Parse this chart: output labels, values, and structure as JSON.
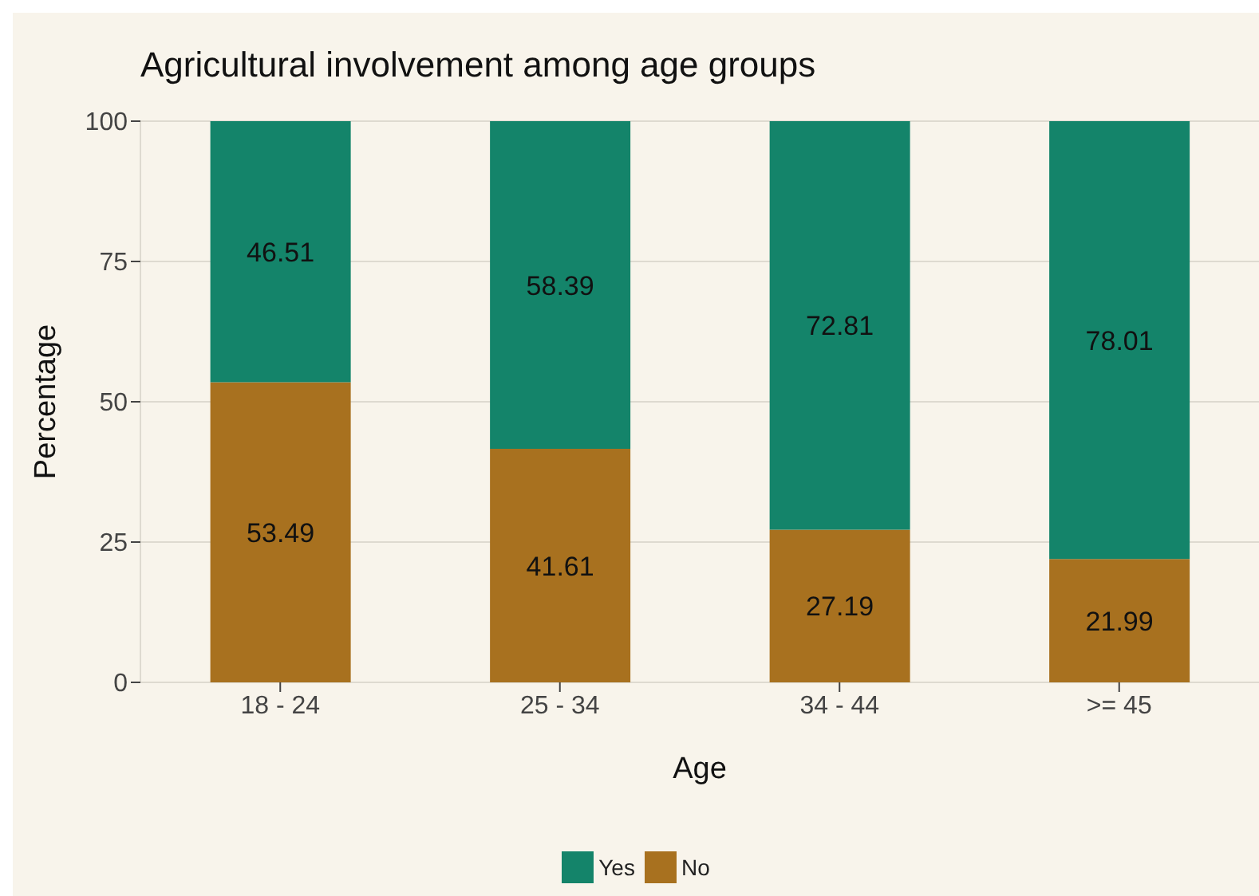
{
  "chart_data": {
    "type": "bar",
    "title": "Agricultural involvement among age groups",
    "xlabel": "Age",
    "ylabel": "Percentage",
    "categories": [
      "18 - 24",
      "25 - 34",
      "34 - 44",
      ">= 45"
    ],
    "series": [
      {
        "name": "No",
        "color": "#a8711f",
        "values": [
          53.49,
          41.61,
          27.19,
          21.99
        ]
      },
      {
        "name": "Yes",
        "color": "#14846a",
        "values": [
          46.51,
          58.39,
          72.81,
          78.01
        ]
      }
    ],
    "stacked": true,
    "ylim": [
      0,
      100
    ],
    "yticks": [
      0,
      25,
      50,
      75,
      100
    ],
    "grid": "y",
    "legend": "bottom",
    "data_labels": true
  }
}
